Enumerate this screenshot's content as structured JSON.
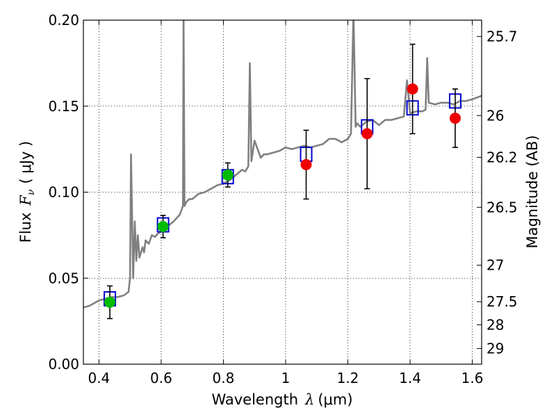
{
  "chart_data": {
    "type": "scatter",
    "title": "",
    "xlabel": "Wavelength  λ (μm)",
    "ylabel": "Flux  Fν  ( μJy )",
    "ylabel_parts": {
      "prefix": "Flux",
      "symbol": "F",
      "subscript": "ν",
      "unit": "( μJy )"
    },
    "xlabel_parts": {
      "prefix": "Wavelength",
      "symbol": "λ",
      "unit": "(μm)"
    },
    "y2label": "Magnitude (AB)",
    "xlim": [
      0.35,
      1.63
    ],
    "ylim": [
      0.0,
      0.2
    ],
    "xticks": [
      "0.4",
      "0.6",
      "0.8",
      "1",
      "1.2",
      "1.4",
      "1.6"
    ],
    "xtick_values": [
      0.4,
      0.6,
      0.8,
      1.0,
      1.2,
      1.4,
      1.6
    ],
    "yticks": [
      "0.00",
      "0.05",
      "0.10",
      "0.15",
      "0.20"
    ],
    "ytick_values": [
      0.0,
      0.05,
      0.1,
      0.15,
      0.2
    ],
    "y2ticks": [
      "25.7",
      "26",
      "26.2",
      "26.5",
      "27",
      "27.5",
      "28",
      "29"
    ],
    "y2tick_values": [
      25.7,
      26.0,
      26.2,
      26.5,
      27.0,
      27.5,
      28.0,
      29.0
    ],
    "grid": true,
    "colors": {
      "spectrum": "#808080",
      "model": "#0000cc",
      "optical": "#00bb00",
      "nir": "#ee0000",
      "errorbar": "#000000"
    },
    "model_points": [
      {
        "x": 0.435,
        "y": 0.038
      },
      {
        "x": 0.606,
        "y": 0.081
      },
      {
        "x": 0.814,
        "y": 0.109
      },
      {
        "x": 1.066,
        "y": 0.122
      },
      {
        "x": 1.262,
        "y": 0.138
      },
      {
        "x": 1.408,
        "y": 0.149
      },
      {
        "x": 1.545,
        "y": 0.153
      }
    ],
    "observed_optical": [
      {
        "x": 0.435,
        "y": 0.036,
        "err": 0.0095
      },
      {
        "x": 0.606,
        "y": 0.08,
        "err": 0.0065
      },
      {
        "x": 0.814,
        "y": 0.11,
        "err": 0.007
      }
    ],
    "observed_nir": [
      {
        "x": 1.066,
        "y": 0.116,
        "err": 0.02
      },
      {
        "x": 1.262,
        "y": 0.134,
        "err": 0.032
      },
      {
        "x": 1.408,
        "y": 0.16,
        "err": 0.026
      },
      {
        "x": 1.545,
        "y": 0.143,
        "err": 0.017
      }
    ],
    "spectrum": {
      "x": [
        0.35,
        0.37,
        0.39,
        0.4,
        0.42,
        0.44,
        0.46,
        0.48,
        0.495,
        0.5,
        0.503,
        0.51,
        0.515,
        0.52,
        0.525,
        0.53,
        0.54,
        0.545,
        0.55,
        0.56,
        0.57,
        0.58,
        0.59,
        0.6,
        0.62,
        0.64,
        0.65,
        0.66,
        0.67,
        0.672,
        0.675,
        0.68,
        0.69,
        0.7,
        0.72,
        0.74,
        0.76,
        0.78,
        0.8,
        0.82,
        0.84,
        0.86,
        0.87,
        0.88,
        0.885,
        0.89,
        0.9,
        0.92,
        0.93,
        0.94,
        0.96,
        0.98,
        1.0,
        1.02,
        1.04,
        1.06,
        1.08,
        1.1,
        1.12,
        1.14,
        1.16,
        1.18,
        1.2,
        1.21,
        1.218,
        1.225,
        1.23,
        1.24,
        1.26,
        1.28,
        1.3,
        1.32,
        1.34,
        1.36,
        1.38,
        1.39,
        1.4,
        1.42,
        1.44,
        1.45,
        1.455,
        1.46,
        1.48,
        1.5,
        1.52,
        1.54,
        1.56,
        1.58,
        1.6,
        1.63
      ],
      "y": [
        0.033,
        0.034,
        0.036,
        0.037,
        0.038,
        0.039,
        0.039,
        0.04,
        0.042,
        0.05,
        0.122,
        0.05,
        0.083,
        0.06,
        0.075,
        0.062,
        0.068,
        0.065,
        0.072,
        0.07,
        0.075,
        0.074,
        0.076,
        0.077,
        0.08,
        0.083,
        0.085,
        0.087,
        0.092,
        0.205,
        0.092,
        0.094,
        0.096,
        0.096,
        0.099,
        0.1,
        0.102,
        0.104,
        0.105,
        0.107,
        0.11,
        0.113,
        0.112,
        0.115,
        0.175,
        0.118,
        0.13,
        0.12,
        0.122,
        0.122,
        0.123,
        0.124,
        0.126,
        0.125,
        0.126,
        0.127,
        0.126,
        0.127,
        0.128,
        0.131,
        0.131,
        0.129,
        0.131,
        0.134,
        0.205,
        0.138,
        0.14,
        0.138,
        0.141,
        0.142,
        0.139,
        0.142,
        0.142,
        0.143,
        0.144,
        0.165,
        0.146,
        0.147,
        0.147,
        0.148,
        0.178,
        0.152,
        0.151,
        0.152,
        0.152,
        0.151,
        0.153,
        0.153,
        0.154,
        0.156
      ]
    }
  }
}
